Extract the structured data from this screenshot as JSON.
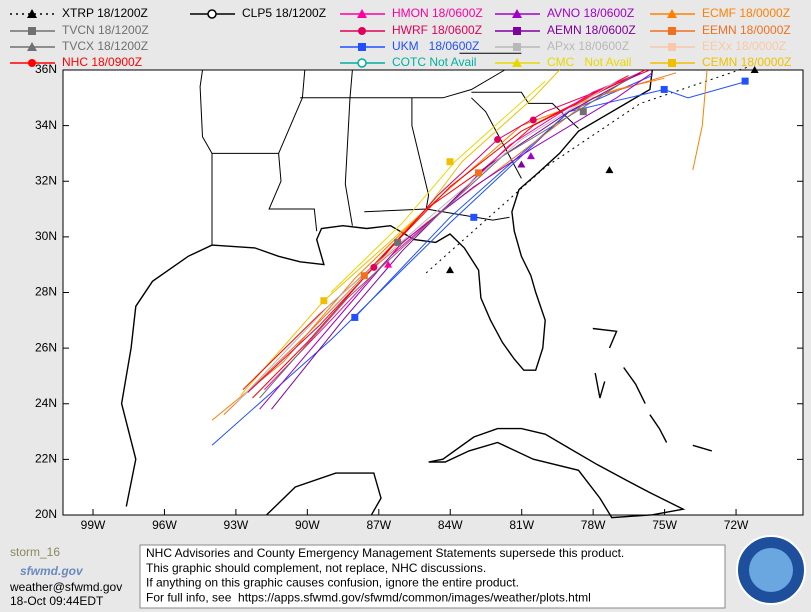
{
  "legend": [
    [
      {
        "label": "XTRP 18/1200Z",
        "color": "#000000",
        "marker": "triangle",
        "dash": true
      },
      {
        "label": "TVCN 18/1200Z",
        "color": "#707070",
        "marker": "square"
      },
      {
        "label": "TVCX 18/1200Z",
        "color": "#707070",
        "marker": "triangle"
      },
      {
        "label": "NHC 18/0900Z",
        "color": "#ff0000",
        "marker": "circle"
      }
    ],
    [
      {
        "label": "CLP5 18/1200Z",
        "color": "#000000",
        "marker": "ring"
      }
    ],
    [
      {
        "label": "HMON 18/0600Z",
        "color": "#ff00a0",
        "marker": "triangle"
      },
      {
        "label": "HWRF 18/0600Z",
        "color": "#e0005a",
        "marker": "circle"
      },
      {
        "label": "UKM   18/0600Z",
        "color": "#2050ff",
        "marker": "square"
      },
      {
        "label": "COTC Not Avail",
        "color": "#00b0a0",
        "marker": "ring"
      }
    ],
    [
      {
        "label": "AVNO 18/0600Z",
        "color": "#a000c8",
        "marker": "triangle"
      },
      {
        "label": "AEMN 18/0600Z",
        "color": "#8000a0",
        "marker": "square"
      },
      {
        "label": "APxx 18/0600Z",
        "color": "#b8b8b8",
        "marker": "square"
      },
      {
        "label": "CMC   Not Avail",
        "color": "#e8d800",
        "marker": "triangle"
      }
    ],
    [
      {
        "label": "ECMF 18/0000Z",
        "color": "#ff8000",
        "marker": "triangle"
      },
      {
        "label": "EEMN 18/0000Z",
        "color": "#f07020",
        "marker": "square"
      },
      {
        "label": "EEXx 18/0000Z",
        "color": "#f8c8a8",
        "marker": "square"
      },
      {
        "label": "CEMN 18/0000Z",
        "color": "#f0c000",
        "marker": "square"
      }
    ]
  ],
  "lat_labels": [
    "36N",
    "34N",
    "32N",
    "30N",
    "28N",
    "26N",
    "24N",
    "22N",
    "20N"
  ],
  "lon_labels": [
    "99W",
    "96W",
    "93W",
    "90W",
    "87W",
    "84W",
    "81W",
    "78W",
    "75W",
    "72W"
  ],
  "footer": {
    "logo": "storm_16",
    "site": "sfwmd.gov",
    "email": "weather@sfwmd.gov",
    "timestamp": "18-Oct 09:44EDT",
    "notice": [
      "NHC Advisories and County Emergency Management Statements supersede this product.",
      "This graphic should complement, not replace, NHC discussions.",
      "If anything on this graphic causes confusion, ignore the entire product.",
      "For full info, see  https://apps.sfwmd.gov/sfwmd/common/images/weather/plots.html"
    ]
  }
}
